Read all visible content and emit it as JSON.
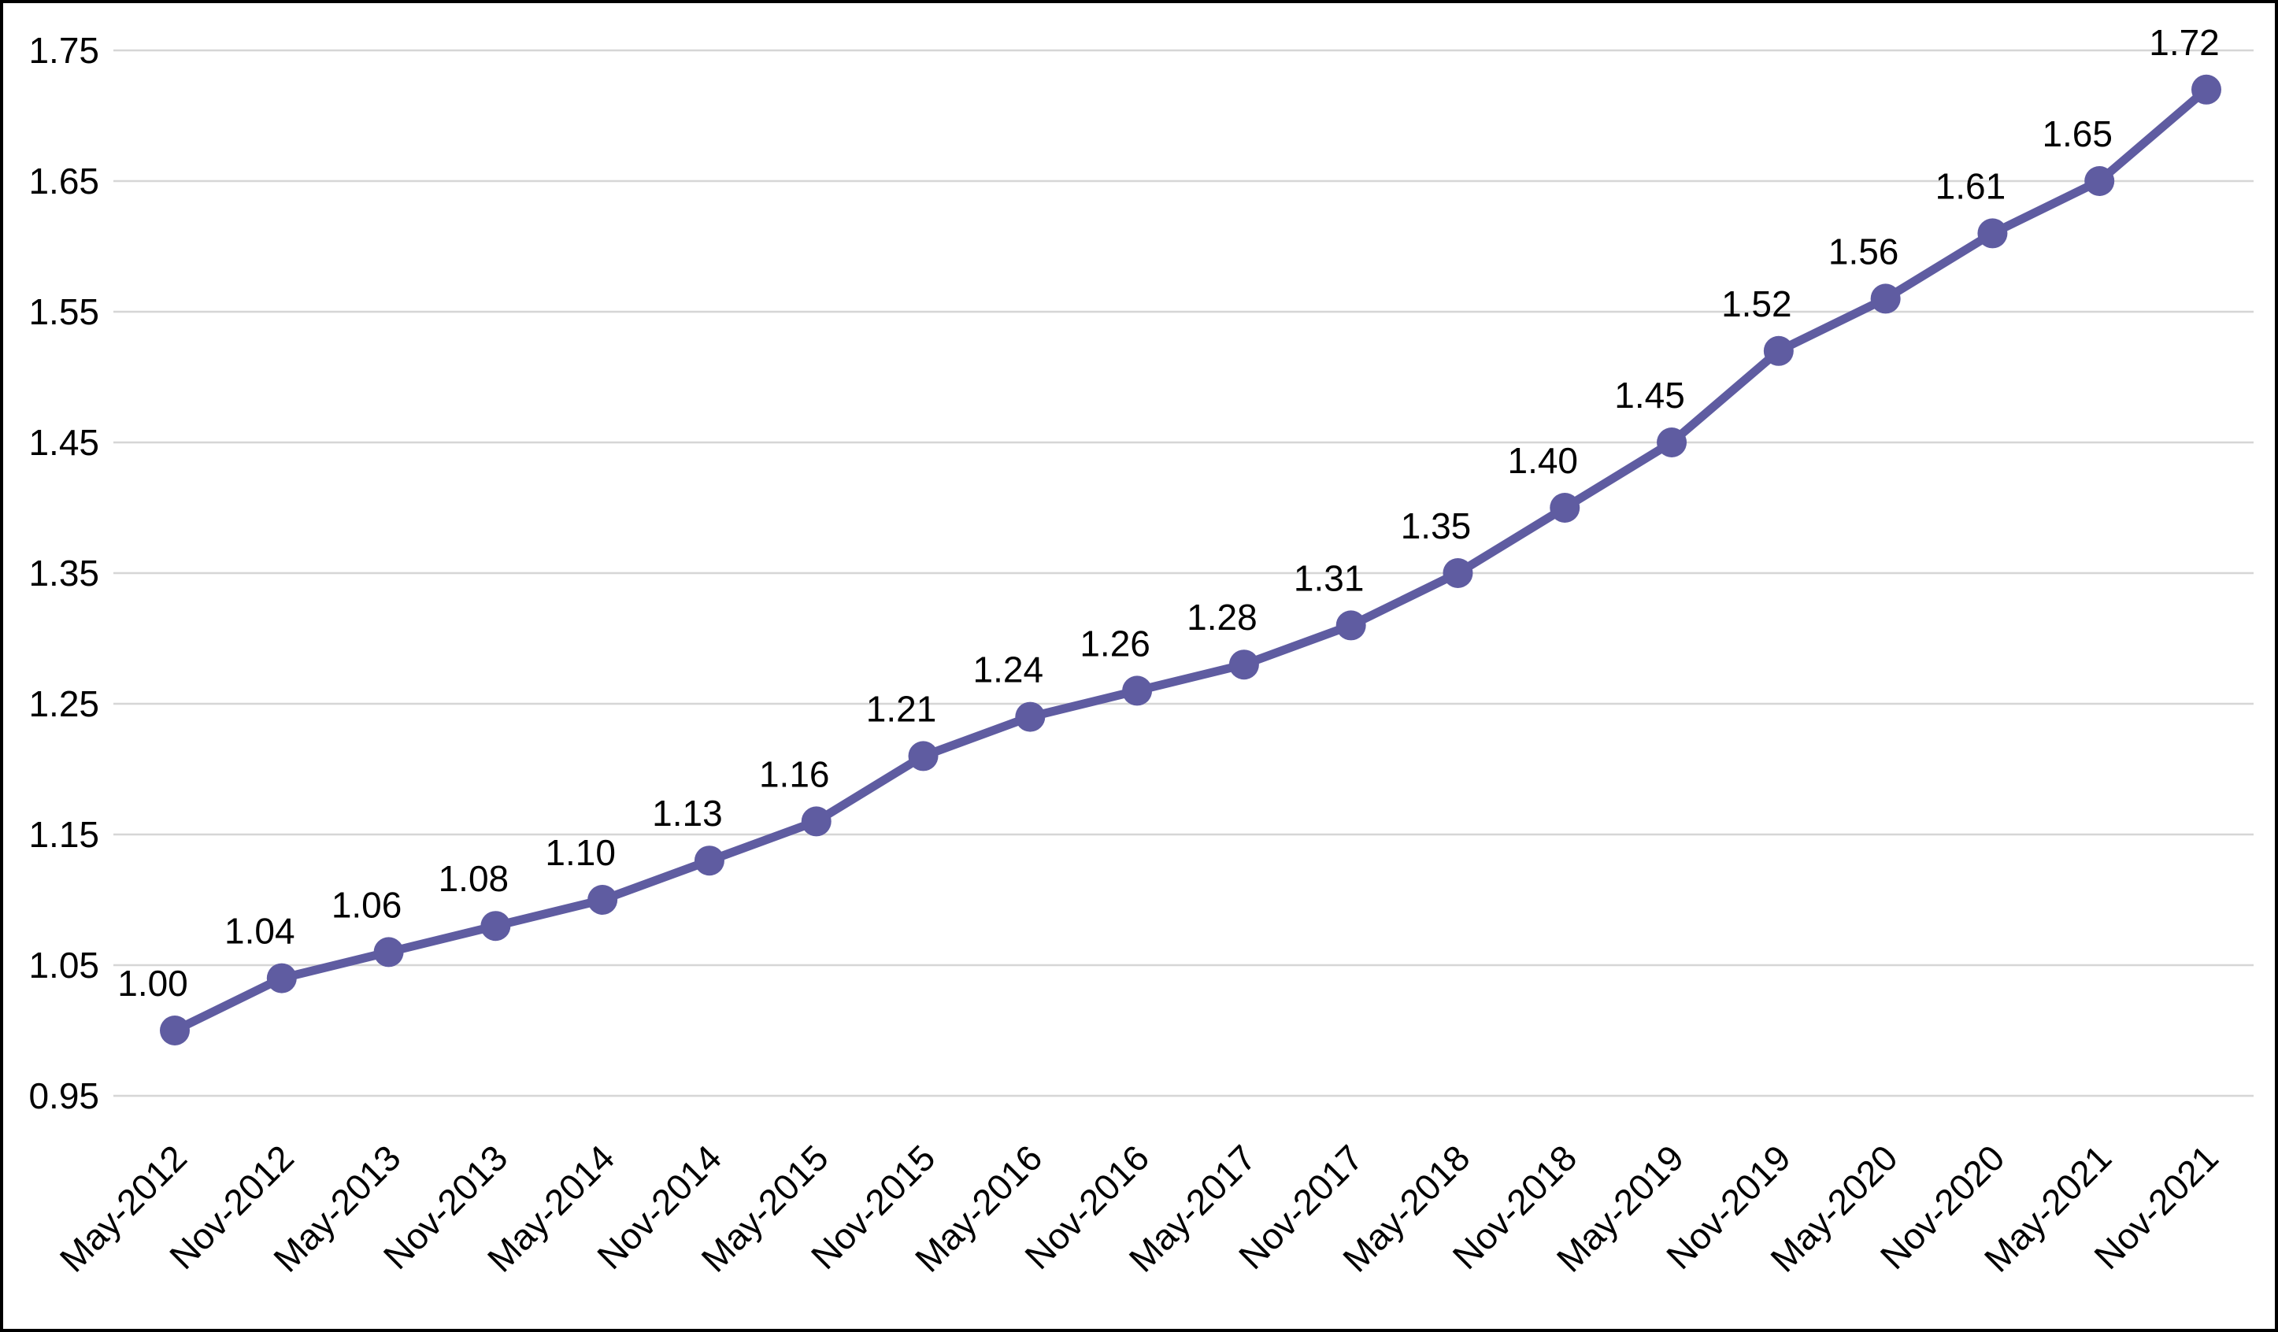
{
  "chart_data": {
    "type": "line",
    "title": "",
    "xlabel": "",
    "ylabel": "",
    "categories": [
      "May-2012",
      "Nov-2012",
      "May-2013",
      "Nov-2013",
      "May-2014",
      "Nov-2014",
      "May-2015",
      "Nov-2015",
      "May-2016",
      "Nov-2016",
      "May-2017",
      "Nov-2017",
      "May-2018",
      "Nov-2018",
      "May-2019",
      "Nov-2019",
      "May-2020",
      "Nov-2020",
      "May-2021",
      "Nov-2021"
    ],
    "series": [
      {
        "name": "index-series",
        "values": [
          1.0,
          1.04,
          1.06,
          1.08,
          1.1,
          1.13,
          1.16,
          1.21,
          1.24,
          1.26,
          1.28,
          1.31,
          1.35,
          1.4,
          1.45,
          1.52,
          1.56,
          1.61,
          1.65,
          1.72
        ]
      }
    ],
    "data_labels": [
      "1.00",
      "1.04",
      "1.06",
      "1.08",
      "1.10",
      "1.13",
      "1.16",
      "1.21",
      "1.24",
      "1.26",
      "1.28",
      "1.31",
      "1.35",
      "1.40",
      "1.45",
      "1.52",
      "1.56",
      "1.61",
      "1.65",
      "1.72"
    ],
    "ylim": [
      0.95,
      1.75
    ],
    "yticks": [
      "0.95",
      "1.05",
      "1.15",
      "1.25",
      "1.35",
      "1.45",
      "1.55",
      "1.65",
      "1.75"
    ],
    "grid": "horizontal",
    "legend": "none",
    "colors": {
      "line": "#5F5CA1",
      "marker": "#5F5CA1",
      "gridline": "#D6D6D6",
      "text": "#000000",
      "background": "#FFFFFF",
      "border": "#000000"
    }
  }
}
